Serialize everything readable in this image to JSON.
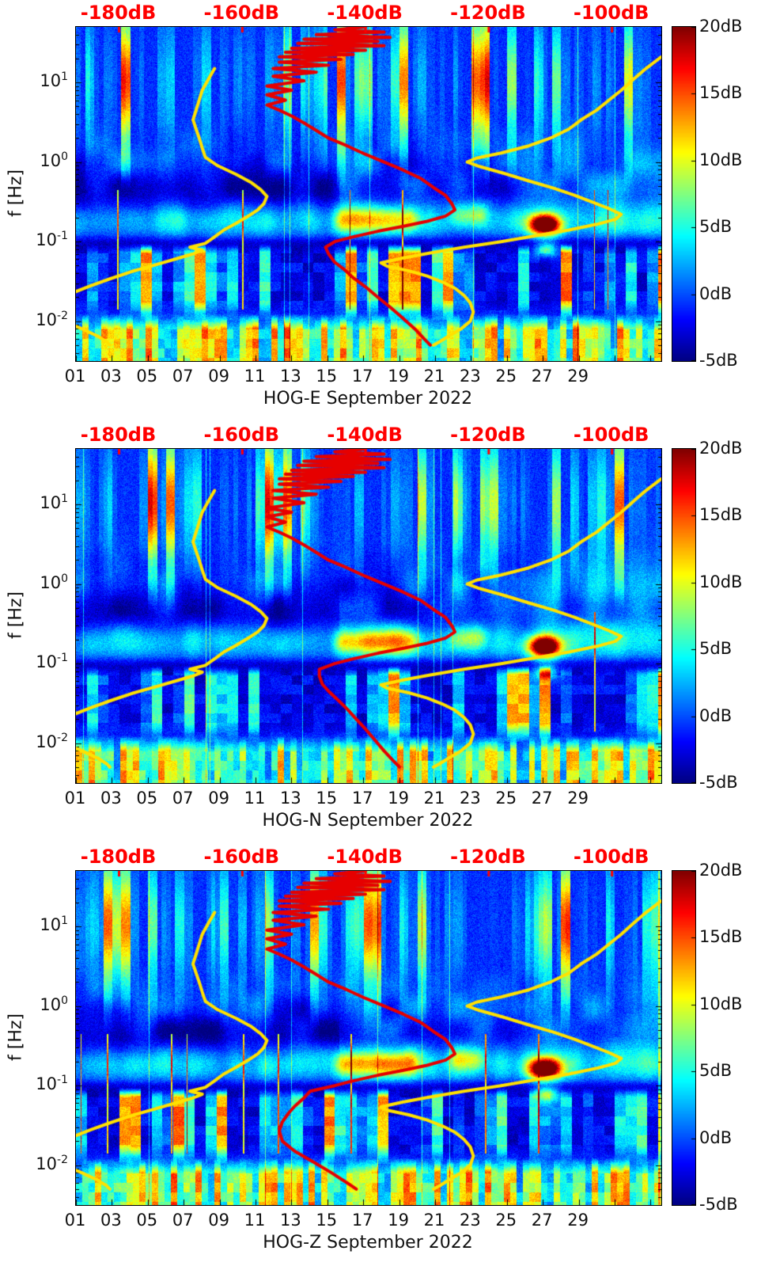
{
  "chart_data": {
    "type": "heatmap",
    "description": "Three seismic spectrogram panels (jet colormap, dB power) with overlaid station PSD curve (red) and Peterson low/high noise model curves (yellow) read against the red top dB axis.",
    "axes": {
      "y_label": "f [Hz]",
      "y_scale": "log",
      "freq_top_hz": 50,
      "freq_decades": 4.2,
      "y_ticks": [
        {
          "base": "10",
          "exp": "1",
          "hz": 10
        },
        {
          "base": "10",
          "exp": "0",
          "hz": 1
        },
        {
          "base": "10",
          "exp": "-1",
          "hz": 0.1
        },
        {
          "base": "10",
          "exp": "-2",
          "hz": 0.01
        }
      ],
      "x_ticks": [
        "01",
        "03",
        "05",
        "07",
        "09",
        "11",
        "13",
        "15",
        "17",
        "19",
        "21",
        "23",
        "25",
        "27",
        "29"
      ],
      "x_tick_days": [
        1,
        3,
        5,
        7,
        9,
        11,
        13,
        15,
        17,
        19,
        21,
        23,
        25,
        27,
        29
      ],
      "day_span": 32.6,
      "top_ticks": [
        "-180dB",
        "-160dB",
        "-140dB",
        "-120dB",
        "-100dB"
      ],
      "top_tick_db": [
        -180,
        -160,
        -140,
        -120,
        -100
      ],
      "top_db_range": [
        -187,
        -92
      ]
    },
    "colorbar": {
      "colormap": "jet",
      "range_db": [
        -5,
        20
      ],
      "ticks": [
        "20dB",
        "15dB",
        "10dB",
        "5dB",
        "0dB",
        "-5dB"
      ],
      "values_db": [
        20,
        15,
        10,
        5,
        0,
        -5
      ]
    },
    "overlay_colors": {
      "psd": "#e60000",
      "noise_models": "#ffe100",
      "top_axis_text": "#ff0000"
    },
    "features": {
      "microseism_band": {
        "center_hz": 0.19,
        "boost_db": 4.5
      },
      "storm_blob": {
        "day": 27.1,
        "center_hz": 0.164,
        "peak_db": 20
      },
      "secondary_blob": {
        "day": 27.2,
        "center_hz": 0.08,
        "peak_db": 12
      },
      "orange_band": {
        "day_start": 15.0,
        "day_end": 20.5,
        "center_hz": 0.19,
        "db": 15
      },
      "bright_patch": {
        "day_start": 21.4,
        "day_end": 24.3,
        "center_hz": 0.22,
        "db": 11
      }
    },
    "noise_models": {
      "low_model_db_vs_freq": [
        [
          15,
          -164.5
        ],
        [
          11,
          -165.5
        ],
        [
          8,
          -166.5
        ],
        [
          6,
          -167
        ],
        [
          4.5,
          -167.5
        ],
        [
          3.4,
          -168
        ],
        [
          2.6,
          -167.5
        ],
        [
          2,
          -167
        ],
        [
          1.5,
          -166.5
        ],
        [
          1.15,
          -166
        ],
        [
          0.9,
          -164
        ],
        [
          0.7,
          -161
        ],
        [
          0.55,
          -158.5
        ],
        [
          0.45,
          -157
        ],
        [
          0.37,
          -156
        ],
        [
          0.3,
          -156.5
        ],
        [
          0.25,
          -157.5
        ],
        [
          0.21,
          -159
        ],
        [
          0.17,
          -161
        ],
        [
          0.14,
          -163
        ],
        [
          0.115,
          -164.5
        ],
        [
          0.095,
          -166
        ],
        [
          0.085,
          -168.5
        ],
        [
          0.078,
          -166.5
        ],
        [
          0.07,
          -168
        ],
        [
          0.06,
          -171
        ],
        [
          0.05,
          -174.5
        ],
        [
          0.042,
          -178
        ],
        [
          0.034,
          -181.5
        ],
        [
          0.028,
          -184.5
        ],
        [
          0.022,
          -188
        ],
        [
          0.017,
          -190.5
        ],
        [
          0.013,
          -191
        ],
        [
          0.01,
          -189
        ],
        [
          0.008,
          -186
        ],
        [
          0.0065,
          -183.5
        ],
        [
          0.0055,
          -182
        ],
        [
          0.005,
          -181.5
        ]
      ],
      "high_model_db_vs_freq": [
        [
          21,
          -92
        ],
        [
          15,
          -94.5
        ],
        [
          11,
          -96.5
        ],
        [
          8,
          -98.5
        ],
        [
          6,
          -100.5
        ],
        [
          4.5,
          -102.5
        ],
        [
          3.4,
          -105
        ],
        [
          2.6,
          -107
        ],
        [
          2,
          -110
        ],
        [
          1.6,
          -113.5
        ],
        [
          1.3,
          -118
        ],
        [
          1.12,
          -122
        ],
        [
          1,
          -123.5
        ],
        [
          0.88,
          -121.5
        ],
        [
          0.72,
          -117.5
        ],
        [
          0.58,
          -113.5
        ],
        [
          0.47,
          -109.5
        ],
        [
          0.38,
          -106
        ],
        [
          0.31,
          -103
        ],
        [
          0.26,
          -100.5
        ],
        [
          0.22,
          -98.5
        ],
        [
          0.19,
          -99.5
        ],
        [
          0.165,
          -102.5
        ],
        [
          0.14,
          -107
        ],
        [
          0.12,
          -112
        ],
        [
          0.1,
          -118
        ],
        [
          0.085,
          -124
        ],
        [
          0.072,
          -129.5
        ],
        [
          0.062,
          -134
        ],
        [
          0.054,
          -137.5
        ],
        [
          0.049,
          -136.5
        ],
        [
          0.043,
          -133
        ],
        [
          0.037,
          -130
        ],
        [
          0.031,
          -127.5
        ],
        [
          0.026,
          -125.5
        ],
        [
          0.021,
          -124
        ],
        [
          0.017,
          -123
        ],
        [
          0.013,
          -122.5
        ],
        [
          0.01,
          -123
        ],
        [
          0.008,
          -124.5
        ],
        [
          0.0065,
          -126.5
        ],
        [
          0.0055,
          -128
        ],
        [
          0.005,
          -129
        ]
      ]
    },
    "panels": [
      {
        "station": "HOG-E",
        "xlabel": "HOG-E September 2022",
        "psd_db_vs_freq": [
          [
            50,
            -140
          ],
          [
            46,
            -145
          ],
          [
            43,
            -137
          ],
          [
            40,
            -148
          ],
          [
            37,
            -136
          ],
          [
            35,
            -150
          ],
          [
            33,
            -138
          ],
          [
            31,
            -151
          ],
          [
            29,
            -137
          ],
          [
            27,
            -152
          ],
          [
            25.5,
            -140
          ],
          [
            24,
            -153
          ],
          [
            22.5,
            -142
          ],
          [
            21,
            -154
          ],
          [
            19.5,
            -144
          ],
          [
            18,
            -154
          ],
          [
            16.5,
            -146
          ],
          [
            15,
            -155
          ],
          [
            13.5,
            -148
          ],
          [
            12,
            -155
          ],
          [
            10.5,
            -150
          ],
          [
            9,
            -156
          ],
          [
            8,
            -152
          ],
          [
            7,
            -156
          ],
          [
            6,
            -153
          ],
          [
            5.2,
            -156
          ],
          [
            4.5,
            -154
          ],
          [
            3.8,
            -152
          ],
          [
            3.1,
            -150
          ],
          [
            2.5,
            -148
          ],
          [
            2,
            -146
          ],
          [
            1.6,
            -143
          ],
          [
            1.25,
            -140
          ],
          [
            1,
            -137
          ],
          [
            0.8,
            -134
          ],
          [
            0.62,
            -131
          ],
          [
            0.48,
            -129
          ],
          [
            0.38,
            -127
          ],
          [
            0.3,
            -126
          ],
          [
            0.25,
            -125.5
          ],
          [
            0.21,
            -127
          ],
          [
            0.18,
            -130
          ],
          [
            0.155,
            -134
          ],
          [
            0.135,
            -138
          ],
          [
            0.115,
            -142
          ],
          [
            0.1,
            -145
          ],
          [
            0.085,
            -146.5
          ],
          [
            0.07,
            -146
          ],
          [
            0.055,
            -145
          ],
          [
            0.045,
            -143.5
          ],
          [
            0.035,
            -142
          ],
          [
            0.027,
            -140
          ],
          [
            0.02,
            -138
          ],
          [
            0.015,
            -136
          ],
          [
            0.011,
            -134
          ],
          [
            0.008,
            -132
          ],
          [
            0.006,
            -130.5
          ],
          [
            0.005,
            -129.5
          ]
        ]
      },
      {
        "station": "HOG-N",
        "xlabel": "HOG-N September 2022",
        "psd_db_vs_freq": [
          [
            50,
            -140
          ],
          [
            46,
            -145
          ],
          [
            43,
            -137
          ],
          [
            40,
            -148
          ],
          [
            37,
            -136
          ],
          [
            35,
            -150
          ],
          [
            33,
            -138
          ],
          [
            31,
            -151
          ],
          [
            29,
            -137
          ],
          [
            27,
            -152
          ],
          [
            25.5,
            -140
          ],
          [
            24,
            -153
          ],
          [
            22.5,
            -142
          ],
          [
            21,
            -154
          ],
          [
            19.5,
            -144
          ],
          [
            18,
            -154
          ],
          [
            16.5,
            -146
          ],
          [
            15,
            -155
          ],
          [
            13.5,
            -148
          ],
          [
            12,
            -155
          ],
          [
            10.5,
            -150
          ],
          [
            9,
            -156
          ],
          [
            8,
            -152
          ],
          [
            7,
            -156
          ],
          [
            6,
            -153
          ],
          [
            5.2,
            -156
          ],
          [
            4.5,
            -154
          ],
          [
            3.8,
            -152
          ],
          [
            3.1,
            -150
          ],
          [
            2.5,
            -148
          ],
          [
            2,
            -146
          ],
          [
            1.6,
            -143
          ],
          [
            1.25,
            -140
          ],
          [
            1,
            -137
          ],
          [
            0.8,
            -134
          ],
          [
            0.62,
            -131
          ],
          [
            0.48,
            -129
          ],
          [
            0.38,
            -127
          ],
          [
            0.3,
            -126
          ],
          [
            0.25,
            -125.5
          ],
          [
            0.21,
            -127
          ],
          [
            0.18,
            -130
          ],
          [
            0.155,
            -134
          ],
          [
            0.135,
            -138
          ],
          [
            0.115,
            -142
          ],
          [
            0.1,
            -145
          ],
          [
            0.085,
            -147.5
          ],
          [
            0.07,
            -147.5
          ],
          [
            0.055,
            -147
          ],
          [
            0.045,
            -146
          ],
          [
            0.035,
            -144.5
          ],
          [
            0.027,
            -143
          ],
          [
            0.02,
            -141.5
          ],
          [
            0.015,
            -140
          ],
          [
            0.011,
            -138.5
          ],
          [
            0.008,
            -137
          ],
          [
            0.006,
            -135.5
          ],
          [
            0.005,
            -134.5
          ]
        ]
      },
      {
        "station": "HOG-Z",
        "xlabel": "HOG-Z September 2022",
        "psd_db_vs_freq": [
          [
            50,
            -140
          ],
          [
            46,
            -145
          ],
          [
            43,
            -137
          ],
          [
            40,
            -148
          ],
          [
            37,
            -136
          ],
          [
            35,
            -150
          ],
          [
            33,
            -138
          ],
          [
            31,
            -151
          ],
          [
            29,
            -137
          ],
          [
            27,
            -152
          ],
          [
            25.5,
            -140
          ],
          [
            24,
            -153
          ],
          [
            22.5,
            -142
          ],
          [
            21,
            -154
          ],
          [
            19.5,
            -144
          ],
          [
            18,
            -154
          ],
          [
            16.5,
            -146
          ],
          [
            15,
            -155
          ],
          [
            13.5,
            -148
          ],
          [
            12,
            -155
          ],
          [
            10.5,
            -150
          ],
          [
            9,
            -156
          ],
          [
            8,
            -152
          ],
          [
            7,
            -156
          ],
          [
            6,
            -153
          ],
          [
            5.2,
            -156
          ],
          [
            4.5,
            -154
          ],
          [
            3.8,
            -152
          ],
          [
            3.1,
            -150
          ],
          [
            2.5,
            -148
          ],
          [
            2,
            -146
          ],
          [
            1.6,
            -143
          ],
          [
            1.25,
            -140
          ],
          [
            1,
            -137
          ],
          [
            0.8,
            -134
          ],
          [
            0.62,
            -131
          ],
          [
            0.48,
            -129
          ],
          [
            0.38,
            -127
          ],
          [
            0.3,
            -126
          ],
          [
            0.25,
            -125.5
          ],
          [
            0.21,
            -127
          ],
          [
            0.18,
            -130
          ],
          [
            0.155,
            -134
          ],
          [
            0.135,
            -138
          ],
          [
            0.115,
            -142
          ],
          [
            0.1,
            -145
          ],
          [
            0.085,
            -149
          ],
          [
            0.07,
            -150
          ],
          [
            0.055,
            -151.5
          ],
          [
            0.045,
            -152.5
          ],
          [
            0.035,
            -153.5
          ],
          [
            0.027,
            -154
          ],
          [
            0.02,
            -153.5
          ],
          [
            0.015,
            -151.5
          ],
          [
            0.011,
            -148.5
          ],
          [
            0.008,
            -145.5
          ],
          [
            0.006,
            -143
          ],
          [
            0.005,
            -141.5
          ]
        ]
      }
    ]
  }
}
